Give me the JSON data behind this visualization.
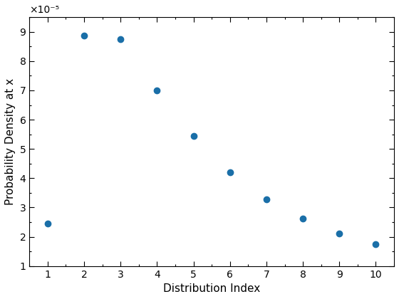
{
  "x": [
    1,
    2,
    3,
    4,
    5,
    6,
    7,
    8,
    9,
    10
  ],
  "y": [
    2.45e-05,
    8.88e-05,
    8.75e-05,
    7e-05,
    5.45e-05,
    4.2e-05,
    3.28e-05,
    2.63e-05,
    2.12e-05,
    1.75e-05
  ],
  "xlabel": "Distribution Index",
  "ylabel": "Probability Density at x",
  "marker_color": "#1a6fa8",
  "marker_size": 36,
  "xlim": [
    0.5,
    10.5
  ],
  "ylim": [
    1e-05,
    9.5e-05
  ],
  "xticks": [
    1,
    2,
    3,
    4,
    5,
    6,
    7,
    8,
    9,
    10
  ],
  "yticks": [
    1e-05,
    2e-05,
    3e-05,
    4e-05,
    5e-05,
    6e-05,
    7e-05,
    8e-05,
    9e-05
  ],
  "yticklabels": [
    "1",
    "2",
    "3",
    "4",
    "5",
    "6",
    "7",
    "8",
    "9"
  ],
  "exponent_label": "×10⁻⁵",
  "background_color": "#ffffff"
}
